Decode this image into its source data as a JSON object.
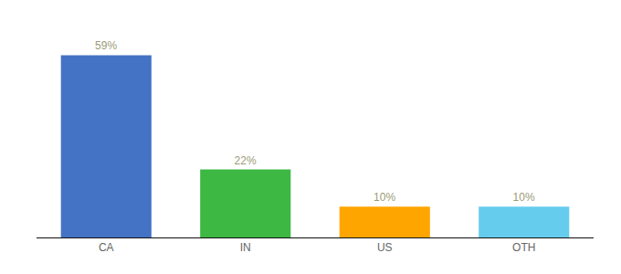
{
  "chart_data": {
    "type": "bar",
    "categories": [
      "CA",
      "IN",
      "US",
      "OTH"
    ],
    "values": [
      59,
      22,
      10,
      10
    ],
    "value_labels": [
      "59%",
      "22%",
      "10%",
      "10%"
    ],
    "colors": [
      "#4472C4",
      "#3CB843",
      "#FFA500",
      "#66CCEE"
    ],
    "ylim": [
      0,
      68
    ],
    "grid": false,
    "data_labels": true,
    "tick_labels": "x"
  }
}
